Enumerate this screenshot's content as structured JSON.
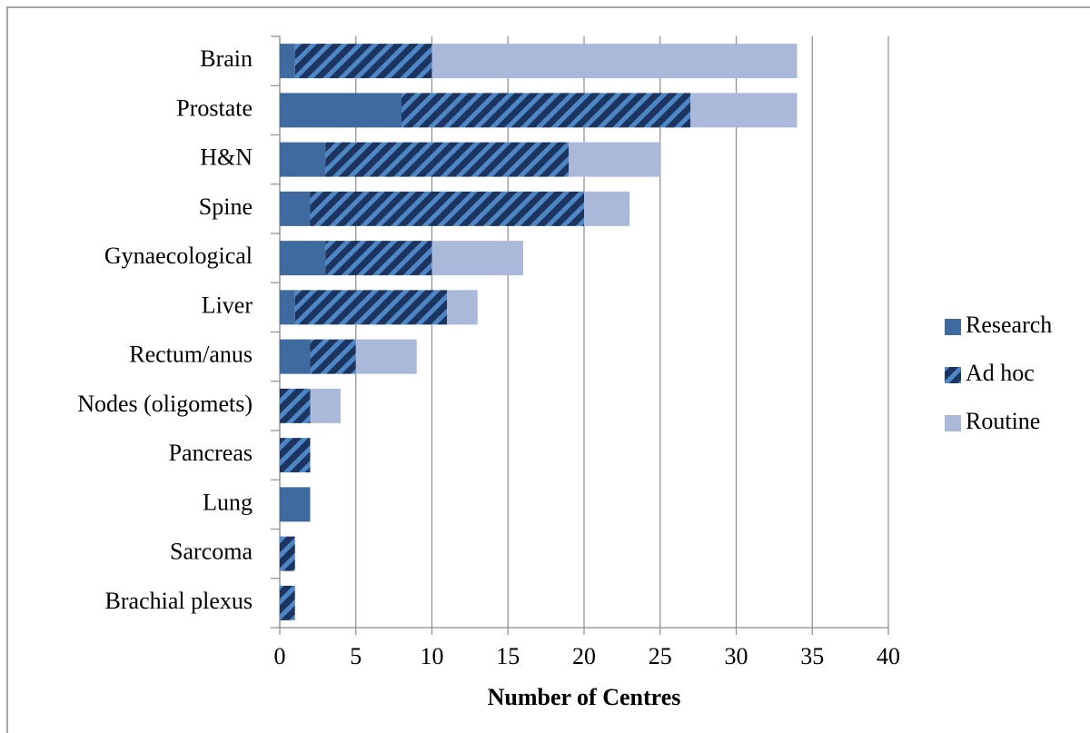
{
  "chart_data": {
    "type": "stacked-barh",
    "xlabel": "Number of Centres",
    "categories": [
      "Brain",
      "Prostate",
      "H&N",
      "Spine",
      "Gynaecological",
      "Liver",
      "Rectum/anus",
      "Nodes (oligomets)",
      "Pancreas",
      "Lung",
      "Sarcoma",
      "Brachial plexus"
    ],
    "series": [
      {
        "name": "Research",
        "color": "#3e6aa0",
        "values": [
          1,
          8,
          3,
          2,
          3,
          1,
          2,
          0,
          0,
          2,
          0,
          0
        ]
      },
      {
        "name": "Ad hoc",
        "color": "#1c3560",
        "pattern": "diagonal-stripes",
        "stripe_color": "#4f86c6",
        "values": [
          9,
          19,
          16,
          18,
          7,
          10,
          3,
          2,
          2,
          0,
          1,
          1
        ]
      },
      {
        "name": "Routine",
        "color": "#aab9d9",
        "values": [
          24,
          7,
          6,
          3,
          6,
          2,
          4,
          2,
          0,
          0,
          0,
          0
        ]
      }
    ],
    "xlim": [
      0,
      40
    ],
    "xticks": [
      0,
      5,
      10,
      15,
      20,
      25,
      30,
      35,
      40
    ],
    "grid": true,
    "legend": "right"
  }
}
